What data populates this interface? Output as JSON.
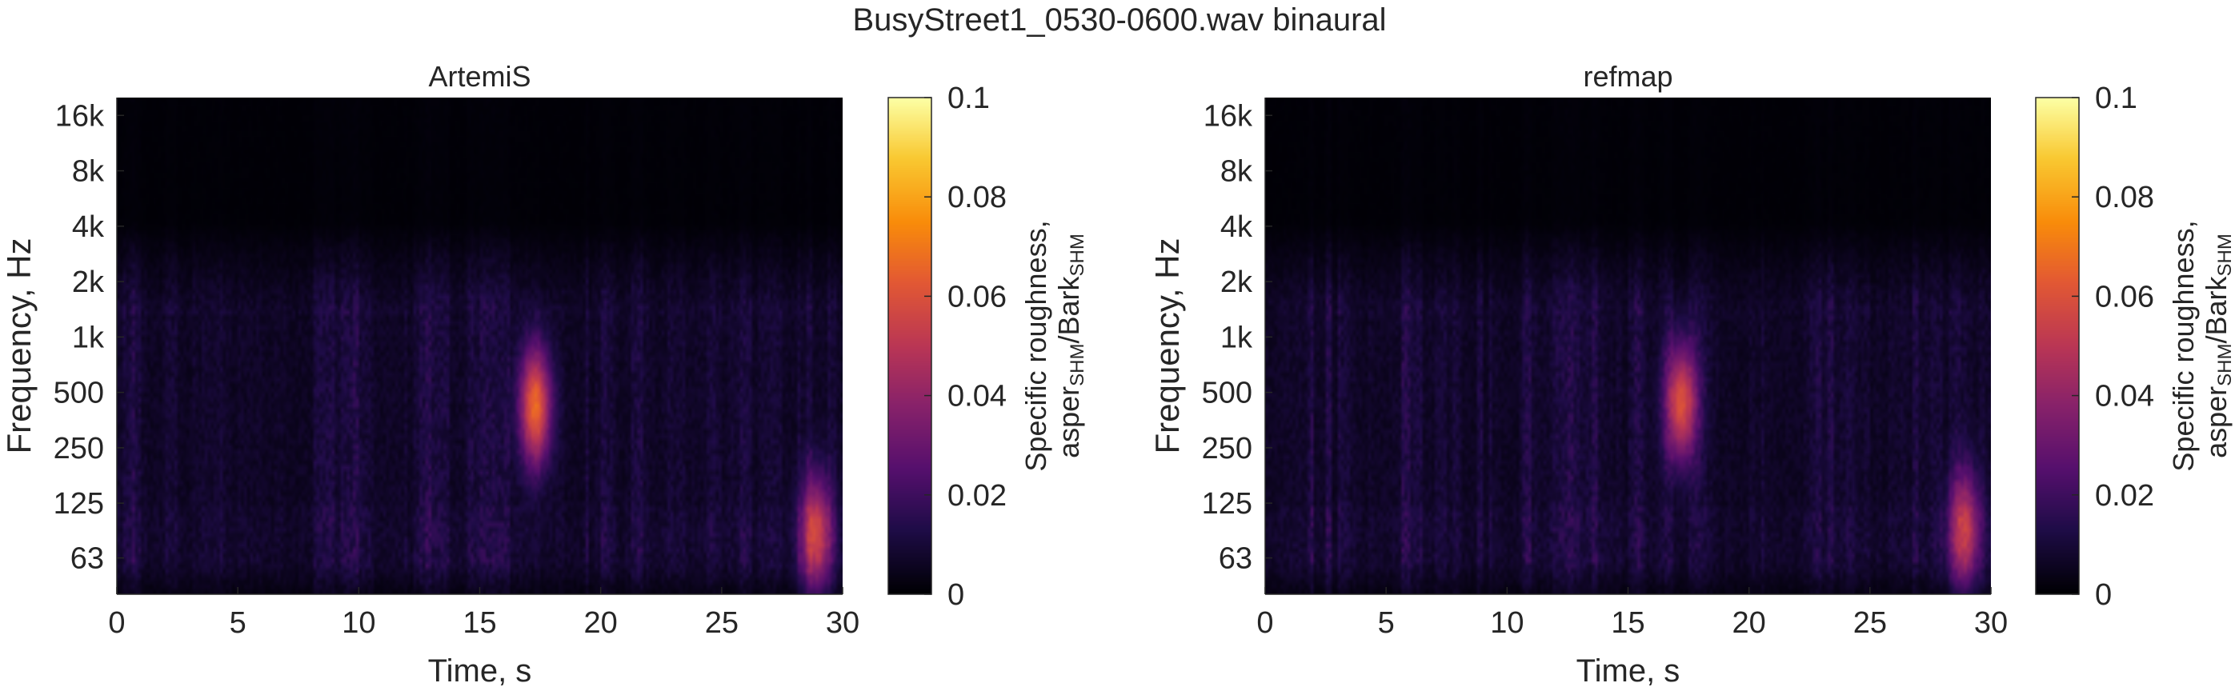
{
  "figure": {
    "suptitle": "BusyStreet1_0530-0600.wav binaural"
  },
  "chart_data": [
    {
      "type": "heatmap",
      "title": "ArtemiS",
      "xlabel": "Time, s",
      "ylabel": "Frequency, Hz",
      "xlim": [
        0,
        30
      ],
      "x_ticks": [
        0,
        5,
        10,
        15,
        20,
        25,
        30
      ],
      "y_scale": "log",
      "ylim": [
        40,
        20000
      ],
      "y_ticks": [
        63,
        125,
        250,
        500,
        1000,
        2000,
        4000,
        8000,
        16000
      ],
      "y_tick_labels": [
        "63",
        "125",
        "250",
        "500",
        "1k",
        "2k",
        "4k",
        "8k",
        "16k"
      ],
      "colormap": "inferno",
      "clim": [
        0,
        0.1
      ],
      "colorbar_ticks": [
        0,
        0.02,
        0.04,
        0.06,
        0.08,
        0.1
      ],
      "colorbar_tick_labels": [
        "0",
        "0.02",
        "0.04",
        "0.06",
        "0.08",
        "0.1"
      ],
      "colorbar_label": {
        "line1": "Specific roughness,",
        "line2_parts": [
          {
            "text": "asper",
            "sub": false
          },
          {
            "text": "SHM",
            "sub": true
          },
          {
            "text": "/Bark",
            "sub": false
          },
          {
            "text": "SHM",
            "sub": true
          }
        ]
      },
      "hotspots": [
        {
          "time": 17.3,
          "freq": 420,
          "value": 0.06
        },
        {
          "time": 28.9,
          "freq": 85,
          "value": 0.05
        }
      ],
      "background_level": 0.012
    },
    {
      "type": "heatmap",
      "title": "refmap",
      "xlabel": "Time, s",
      "ylabel": "Frequency, Hz",
      "xlim": [
        0,
        30
      ],
      "x_ticks": [
        0,
        5,
        10,
        15,
        20,
        25,
        30
      ],
      "y_scale": "log",
      "ylim": [
        40,
        20000
      ],
      "y_ticks": [
        63,
        125,
        250,
        500,
        1000,
        2000,
        4000,
        8000,
        16000
      ],
      "y_tick_labels": [
        "63",
        "125",
        "250",
        "500",
        "1k",
        "2k",
        "4k",
        "8k",
        "16k"
      ],
      "colormap": "inferno",
      "clim": [
        0,
        0.1
      ],
      "colorbar_ticks": [
        0,
        0.02,
        0.04,
        0.06,
        0.08,
        0.1
      ],
      "colorbar_tick_labels": [
        "0",
        "0.02",
        "0.04",
        "0.06",
        "0.08",
        "0.1"
      ],
      "colorbar_label": {
        "line1": "Specific roughness,",
        "line2_parts": [
          {
            "text": "asper",
            "sub": false
          },
          {
            "text": "SHM",
            "sub": true
          },
          {
            "text": "/Bark",
            "sub": false
          },
          {
            "text": "SHM",
            "sub": true
          }
        ]
      },
      "hotspots": [
        {
          "time": 17.2,
          "freq": 440,
          "value": 0.055
        },
        {
          "time": 28.9,
          "freq": 90,
          "value": 0.045
        }
      ],
      "background_level": 0.012
    }
  ]
}
